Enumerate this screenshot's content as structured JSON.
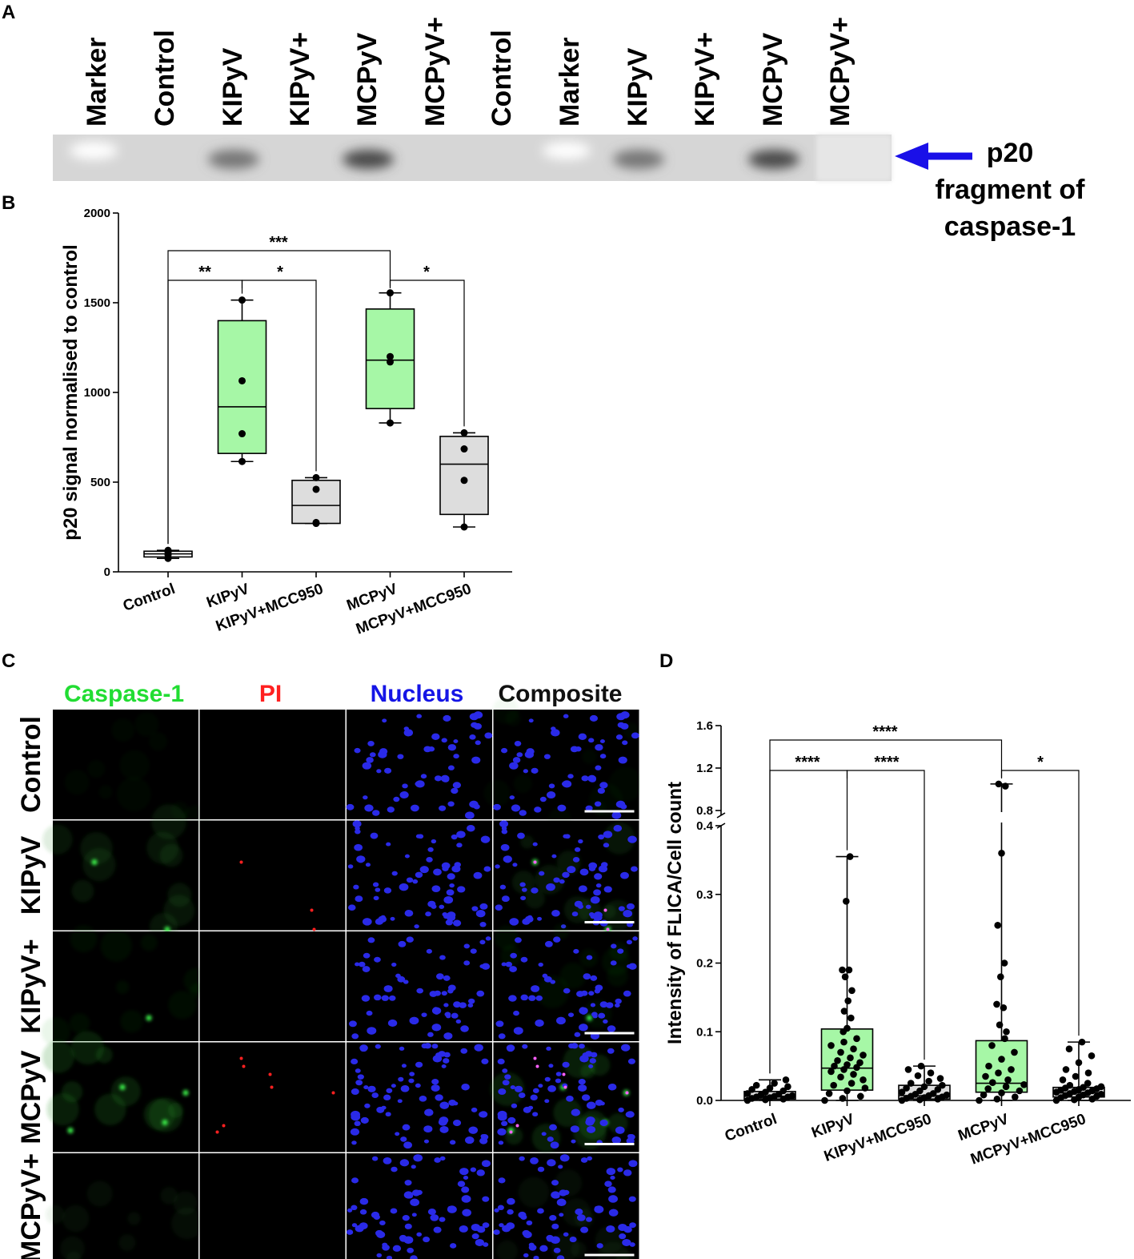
{
  "panels": {
    "A": {
      "letter": "A",
      "lanes": [
        "Marker",
        "Control",
        "KIPyV",
        "KIPyV+",
        "MCPyV",
        "MCPyV+",
        "Control",
        "Marker",
        "KIPyV",
        "KIPyV+",
        "MCPyV",
        "MCPyV+"
      ],
      "arrow_label": [
        "p20",
        "fragment of",
        "caspase-1"
      ],
      "arrow_color": "#1a10e8"
    },
    "B": {
      "letter": "B",
      "ylabel": "p20 signal normalised to control",
      "significance": [
        {
          "from": "Control",
          "to": "KIPyV",
          "label": "**"
        },
        {
          "from": "KIPyV",
          "to": "KIPyV+MCC950",
          "label": "*"
        },
        {
          "from": "Control",
          "to": "MCPyV",
          "label": "***"
        },
        {
          "from": "MCPyV",
          "to": "MCPyV+MCC950",
          "label": "*"
        }
      ]
    },
    "C": {
      "letter": "C",
      "columns": [
        {
          "label": "Caspase-1",
          "color": "#22dd33"
        },
        {
          "label": "PI",
          "color": "#ff2020"
        },
        {
          "label": "Nucleus",
          "color": "#1515e6"
        },
        {
          "label": "Composite",
          "color": "#111111"
        }
      ],
      "rows": [
        "Control",
        "KIPyV",
        "KIPyV+",
        "MCPyV",
        "MCPyV+"
      ]
    },
    "D": {
      "letter": "D",
      "ylabel": "Intensity of FLICA/Cell count",
      "significance": [
        {
          "from": "Control",
          "to": "KIPyV",
          "label": "****"
        },
        {
          "from": "KIPyV",
          "to": "KIPyV+MCC950",
          "label": "****"
        },
        {
          "from": "Control",
          "to": "MCPyV",
          "label": "****"
        },
        {
          "from": "MCPyV",
          "to": "MCPyV+MCC950",
          "label": "*"
        }
      ]
    }
  },
  "chart_data": [
    {
      "type": "box",
      "panel": "B",
      "ylabel": "p20 signal normalised to control",
      "ylim": [
        0,
        2000
      ],
      "yticks": [
        0,
        500,
        1000,
        1500,
        2000
      ],
      "categories": [
        "Control",
        "KIPyV",
        "KIPyV+MCC950",
        "MCPyV",
        "MCPyV+MCC950"
      ],
      "fill_colors": [
        "#ffffff",
        "#a6f7a6",
        "#dddddd",
        "#a6f7a6",
        "#dddddd"
      ],
      "boxes": [
        {
          "min": 75,
          "q1": 83,
          "median": 100,
          "q3": 115,
          "max": 120
        },
        {
          "min": 615,
          "q1": 660,
          "median": 920,
          "q3": 1400,
          "max": 1515
        },
        {
          "min": 270,
          "q1": 270,
          "median": 370,
          "q3": 510,
          "max": 525
        },
        {
          "min": 830,
          "q1": 910,
          "median": 1180,
          "q3": 1465,
          "max": 1555
        },
        {
          "min": 250,
          "q1": 320,
          "median": 600,
          "q3": 755,
          "max": 775
        }
      ],
      "points": [
        [
          75,
          95,
          110,
          120
        ],
        [
          615,
          770,
          1065,
          1515
        ],
        [
          270,
          275,
          460,
          525
        ],
        [
          830,
          1170,
          1200,
          1555
        ],
        [
          250,
          510,
          685,
          775
        ]
      ]
    },
    {
      "type": "box",
      "panel": "D",
      "ylabel": "Intensity of FLICA/Cell count",
      "ylim": [
        0,
        1.6
      ],
      "axis_break": [
        0.4,
        0.8
      ],
      "yticks_lower": [
        0.0,
        0.1,
        0.2,
        0.3,
        0.4
      ],
      "yticks_upper": [
        0.8,
        1.2,
        1.6
      ],
      "categories": [
        "Control",
        "KIPyV",
        "KIPyV+MCC950",
        "MCPyV",
        "MCPyV+MCC950"
      ],
      "fill_colors": [
        "#dddddd",
        "#a6f7a6",
        "#dddddd",
        "#a6f7a6",
        "#dddddd"
      ],
      "boxes": [
        {
          "min": 0.0,
          "q1": 0.002,
          "median": 0.006,
          "q3": 0.013,
          "max": 0.03
        },
        {
          "min": 0.0,
          "q1": 0.015,
          "median": 0.047,
          "q3": 0.104,
          "max": 0.355
        },
        {
          "min": 0.0,
          "q1": 0.002,
          "median": 0.007,
          "q3": 0.022,
          "max": 0.05
        },
        {
          "min": 0.0,
          "q1": 0.012,
          "median": 0.025,
          "q3": 0.087,
          "max": 1.05
        },
        {
          "min": 0.0,
          "q1": 0.005,
          "median": 0.011,
          "q3": 0.019,
          "max": 0.085
        }
      ],
      "points": [
        [
          0.0,
          0.001,
          0.002,
          0.003,
          0.004,
          0.005,
          0.005,
          0.006,
          0.007,
          0.008,
          0.009,
          0.01,
          0.012,
          0.014,
          0.016,
          0.018,
          0.02,
          0.022,
          0.025,
          0.03
        ],
        [
          0.0,
          0.003,
          0.006,
          0.01,
          0.014,
          0.018,
          0.022,
          0.025,
          0.03,
          0.034,
          0.038,
          0.042,
          0.045,
          0.048,
          0.05,
          0.052,
          0.055,
          0.058,
          0.062,
          0.066,
          0.07,
          0.075,
          0.08,
          0.085,
          0.09,
          0.1,
          0.105,
          0.12,
          0.13,
          0.145,
          0.16,
          0.18,
          0.19,
          0.19,
          0.29,
          0.355
        ],
        [
          0.0,
          0.001,
          0.002,
          0.003,
          0.004,
          0.005,
          0.006,
          0.007,
          0.008,
          0.009,
          0.01,
          0.012,
          0.014,
          0.016,
          0.018,
          0.02,
          0.022,
          0.025,
          0.028,
          0.032,
          0.036,
          0.04,
          0.045,
          0.05
        ],
        [
          0.0,
          0.002,
          0.005,
          0.008,
          0.011,
          0.014,
          0.017,
          0.02,
          0.023,
          0.026,
          0.03,
          0.035,
          0.04,
          0.045,
          0.05,
          0.06,
          0.07,
          0.08,
          0.09,
          0.1,
          0.11,
          0.135,
          0.14,
          0.18,
          0.2,
          0.255,
          0.36,
          1.03,
          1.05
        ],
        [
          0.0,
          0.001,
          0.002,
          0.004,
          0.005,
          0.006,
          0.007,
          0.008,
          0.009,
          0.01,
          0.011,
          0.012,
          0.013,
          0.014,
          0.015,
          0.016,
          0.017,
          0.018,
          0.019,
          0.02,
          0.022,
          0.025,
          0.03,
          0.035,
          0.04,
          0.045,
          0.055,
          0.065,
          0.075,
          0.085
        ]
      ]
    }
  ]
}
